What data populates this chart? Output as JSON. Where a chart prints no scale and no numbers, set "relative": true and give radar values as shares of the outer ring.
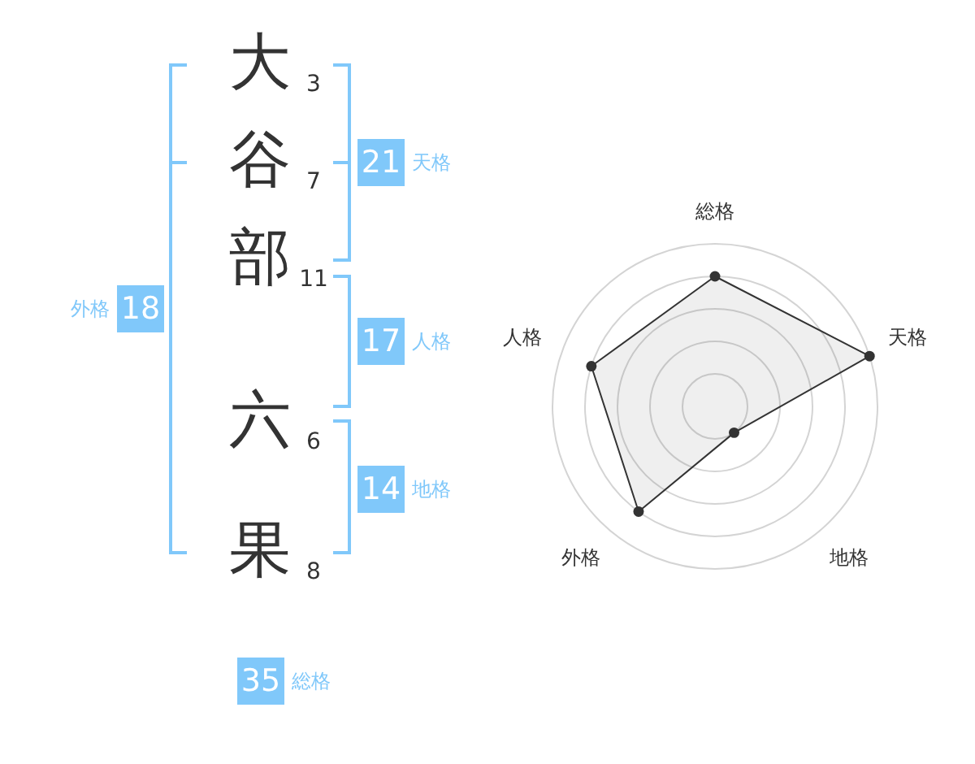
{
  "chart_data": [
    {
      "type": "other",
      "categories": [
        "大",
        "谷",
        "部",
        "六",
        "果"
      ],
      "values": [
        3,
        7,
        11,
        6,
        8
      ],
      "data_labels": true,
      "color": "#80c8fa",
      "annotations": [
        "21",
        "天格",
        "17",
        "人格",
        "14",
        "地格",
        "18",
        "外格",
        "35",
        "総格"
      ]
    },
    {
      "type": "radar",
      "categories": [
        "総格",
        "天格",
        "地格",
        "外格",
        "人格"
      ],
      "relative": true,
      "grid": true,
      "marker": "circle",
      "series": [
        {
          "color": "#333333",
          "values": [
            0.8,
            1,
            0.2,
            0.8,
            0.8
          ]
        }
      ]
    }
  ]
}
